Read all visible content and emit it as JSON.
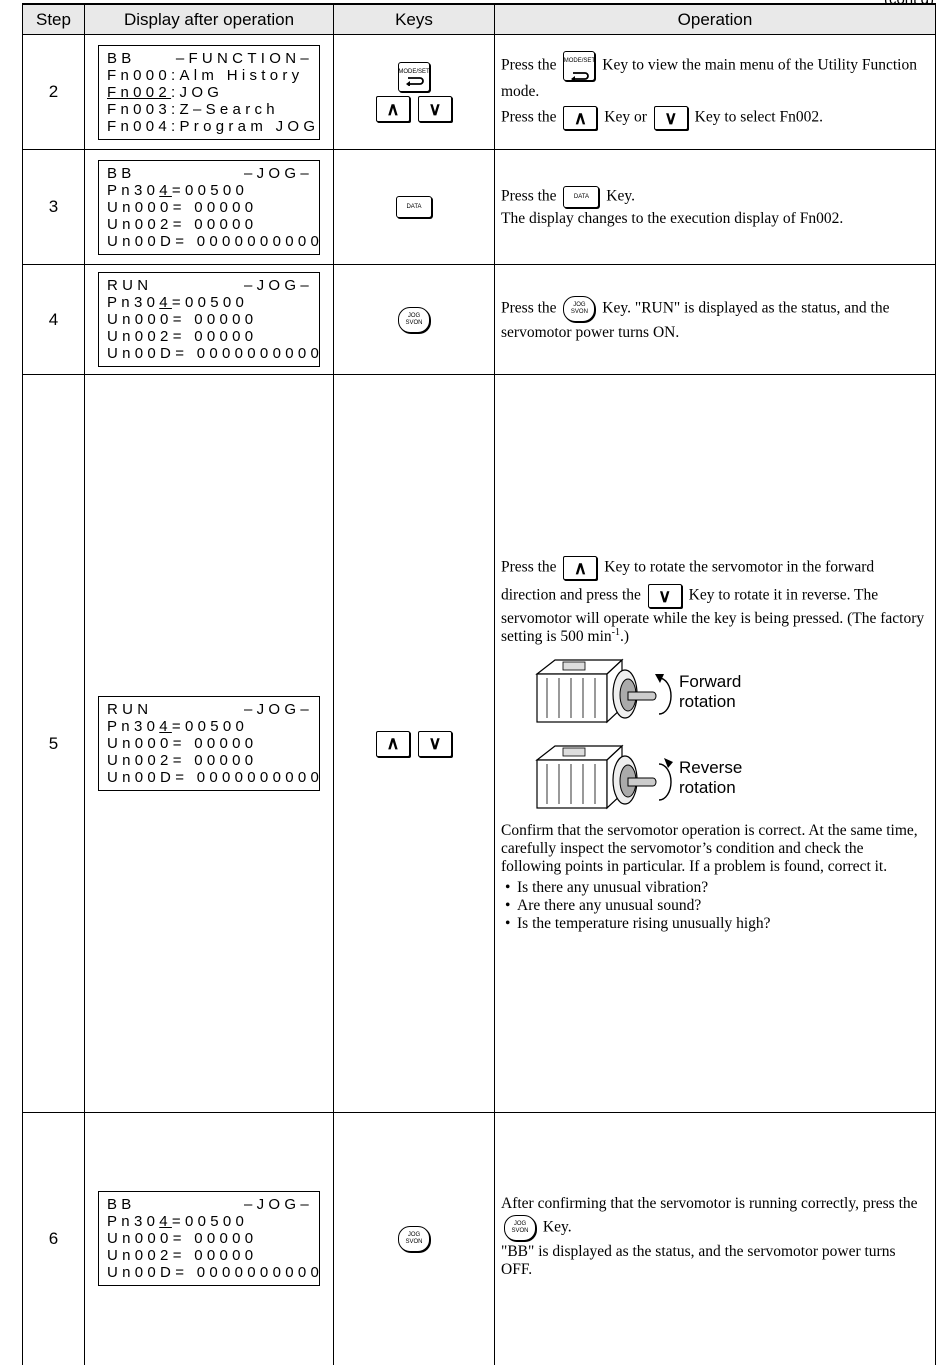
{
  "header": {
    "note": "(cont’d)",
    "columns": [
      "Step",
      "Display after operation",
      "Keys",
      "Operation"
    ]
  },
  "rows": [
    {
      "step": "2",
      "display": [
        {
          "status": "BB",
          "mode": "–FUNCTION–"
        },
        [
          "Fn000:Alm History"
        ],
        [
          {
            "underlined": "Fn002"
          },
          ":JOG"
        ],
        [
          "Fn003:Z–Search"
        ],
        [
          "Fn004:Program JOG"
        ]
      ],
      "keys": [
        [
          {
            "label": "MODE/SET",
            "shape": "mode"
          }
        ],
        [
          {
            "label": "∧",
            "shape": "arrow"
          },
          {
            "label": "∨",
            "shape": "arrow"
          }
        ]
      ],
      "operation": [
        [
          "Press the ",
          {
            "key": {
              "label": "MODE/SET",
              "shape": "mode"
            }
          },
          " Key to view the main menu of the Utility Function mode."
        ],
        [
          "Press the ",
          {
            "key": {
              "label": "∧",
              "shape": "arrow"
            }
          },
          " Key or ",
          {
            "key": {
              "label": "∨",
              "shape": "arrow"
            }
          },
          " Key to select Fn002."
        ]
      ]
    },
    {
      "step": "3",
      "display": [
        {
          "status": "BB",
          "mode": "–JOG–"
        },
        [
          "Pn30",
          {
            "underlined": "4"
          },
          "=00500"
        ],
        [
          "Un000= 00000"
        ],
        [
          "Un002= 00000"
        ],
        [
          "Un00D= 0000000000"
        ]
      ],
      "keys": [
        [
          {
            "label": "DATA",
            "shape": "rect"
          }
        ]
      ],
      "operation": [
        [
          "Press the ",
          {
            "key": {
              "label": "DATA",
              "shape": "rect"
            }
          },
          " Key.",
          {
            "br": true
          },
          "The display changes to the execution display of Fn002."
        ]
      ]
    },
    {
      "step": "4",
      "display": [
        {
          "status": "RUN",
          "mode": "–JOG–"
        },
        [
          "Pn30",
          {
            "underlined": "4"
          },
          "=00500"
        ],
        [
          "Un000= 00000"
        ],
        [
          "Un002= 00000"
        ],
        [
          "Un00D= 0000000000"
        ]
      ],
      "keys": [
        [
          {
            "label": [
              "JOG",
              "SVON"
            ],
            "shape": "round"
          }
        ]
      ],
      "operation": [
        [
          "Press the ",
          {
            "key": {
              "label": [
                "JOG",
                "SVON"
              ],
              "shape": "round"
            }
          },
          " Key. \"RUN\" is displayed as the status, and the servomotor power turns ON."
        ]
      ]
    },
    {
      "step": "5",
      "display": [
        {
          "status": "RUN",
          "mode": "–JOG–"
        },
        [
          "Pn30",
          {
            "underlined": "4"
          },
          "=00500"
        ],
        [
          "Un000= 00000"
        ],
        [
          "Un002= 00000"
        ],
        [
          "Un00D= 0000000000"
        ]
      ],
      "keys": [
        [
          {
            "label": "∧",
            "shape": "arrow"
          },
          {
            "label": "∨",
            "shape": "arrow"
          }
        ]
      ],
      "operation": [
        [
          "Press the ",
          {
            "key": {
              "label": "∧",
              "shape": "arrow"
            }
          },
          " Key to rotate the servomotor in the forward direction and press the ",
          {
            "key": {
              "label": "∨",
              "shape": "arrow"
            }
          },
          " Key to rotate it in reverse. The servomotor will operate while the key is being pressed. (The factory setting is 500 min",
          {
            "sup": "-1"
          },
          ".)"
        ],
        {
          "figure": [
            {
              "label": [
                "Forward",
                "rotation"
              ],
              "direction": "forward"
            },
            {
              "label": [
                "Reverse",
                "rotation"
              ],
              "direction": "reverse"
            }
          ]
        },
        [
          "Confirm that the servomotor operation is correct. At the same time, carefully inspect the servomotor’s condition and check the following points in particular. If a problem is found, correct it."
        ],
        {
          "bullets": [
            "Is there any unusual vibration?",
            "Are there any unusual sound?",
            "Is the temperature rising unusually high?"
          ]
        }
      ]
    },
    {
      "step": "6",
      "display": [
        {
          "status": "BB",
          "mode": "–JOG–"
        },
        [
          "Pn30",
          {
            "underlined": "4"
          },
          "=00500"
        ],
        [
          "Un000= 00000"
        ],
        [
          "Un002= 00000"
        ],
        [
          "Un00D= 0000000000"
        ]
      ],
      "keys": [
        [
          {
            "label": [
              "JOG",
              "SVON"
            ],
            "shape": "round"
          }
        ]
      ],
      "operation": [
        [
          "After confirming that the servomotor is running correctly, press the ",
          {
            "key": {
              "label": [
                "JOG",
                "SVON"
              ],
              "shape": "round"
            }
          },
          " Key.",
          {
            "br": true
          },
          "\"BB\" is displayed as the status, and the servomotor power turns OFF."
        ]
      ]
    }
  ]
}
